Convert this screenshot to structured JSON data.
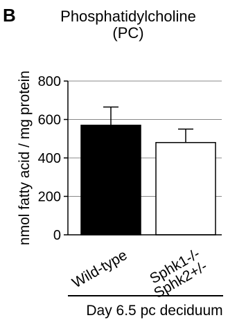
{
  "panel_label": "B",
  "chart_data": {
    "type": "bar",
    "title": "Phosphatidylcholine",
    "subtitle": "(PC)",
    "ylabel": "nmol fatty acid / mg protein",
    "xlabel": "Day 6.5 pc deciduum",
    "ylim": [
      0,
      800
    ],
    "yticks": [
      0,
      200,
      400,
      600,
      800
    ],
    "grid": "horizontal",
    "categories": [
      {
        "lines": [
          "Wild-type"
        ]
      },
      {
        "lines": [
          "Sphk1-/-",
          "Sphk2+/-"
        ]
      }
    ],
    "values": [
      570,
      480
    ],
    "errors": [
      95,
      70
    ],
    "bar_colors": [
      "#000000",
      "#ffffff"
    ]
  }
}
